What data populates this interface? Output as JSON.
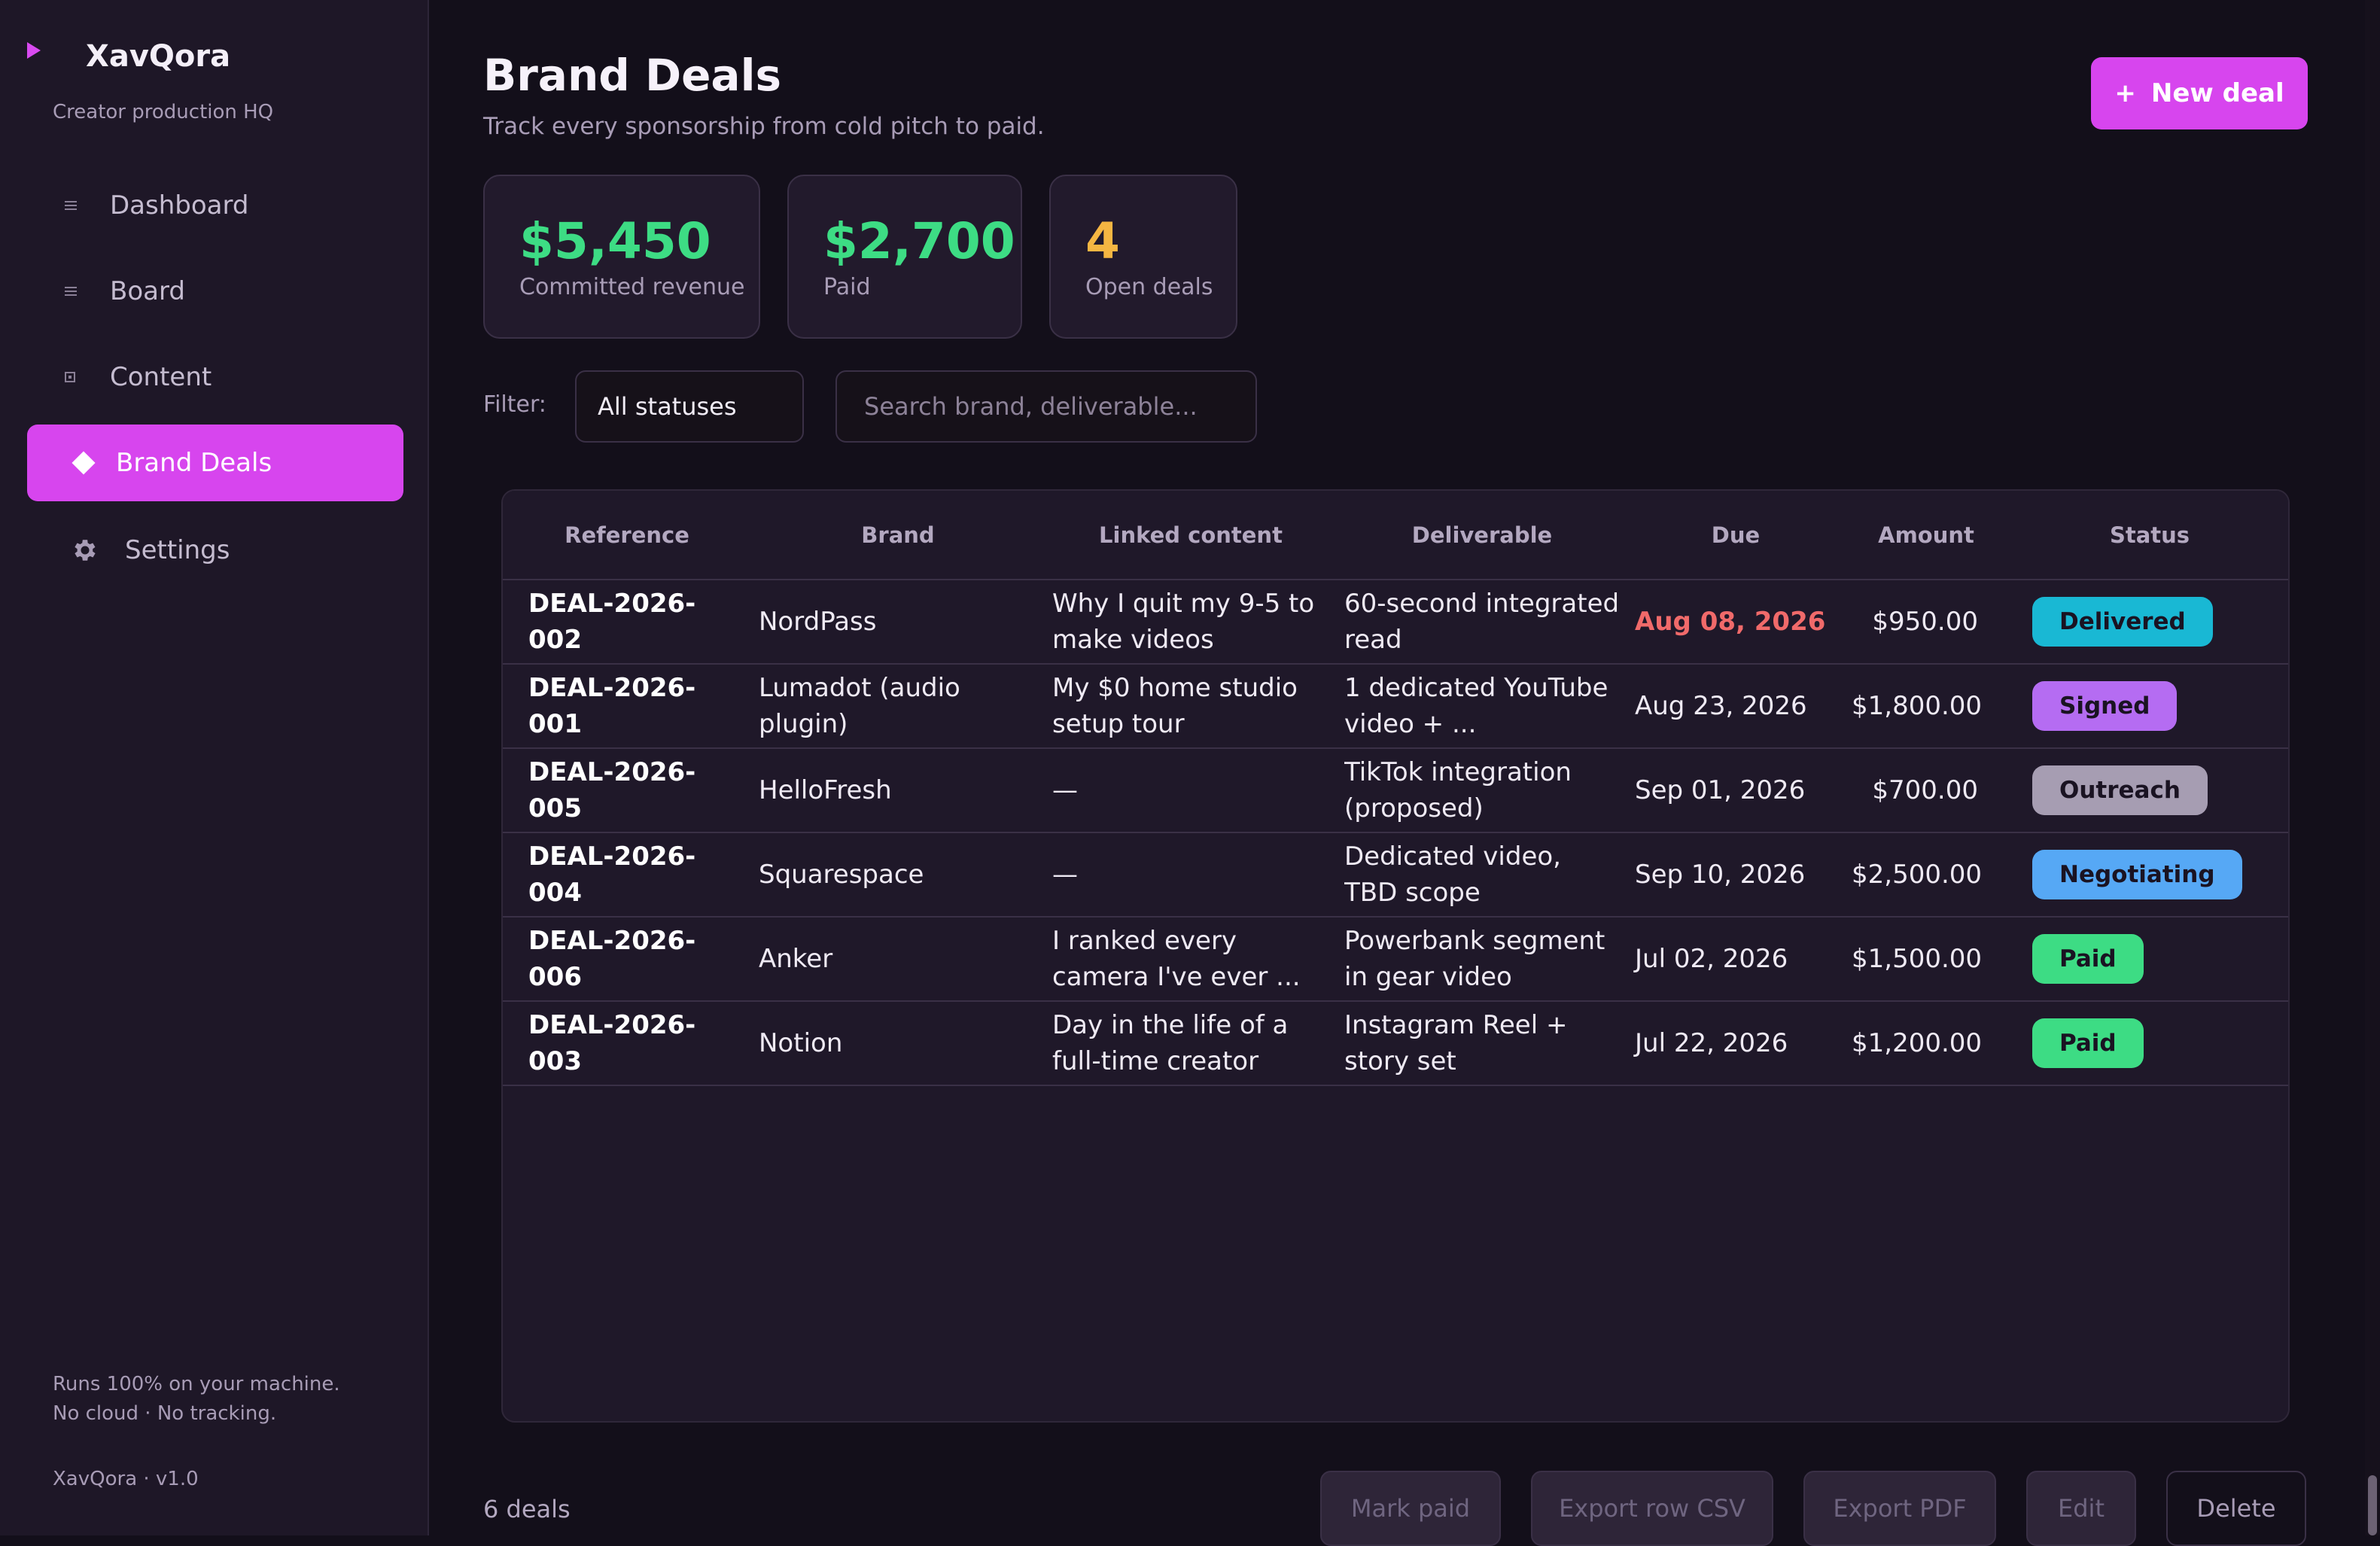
{
  "app": {
    "name": "XavQora",
    "tagline": "Creator production HQ",
    "footer_line1": "Runs 100% on your machine.",
    "footer_line2": "No cloud · No tracking.",
    "version": "XavQora · v1.0"
  },
  "sidebar": {
    "items": [
      {
        "label": "Dashboard",
        "icon": "list-icon"
      },
      {
        "label": "Board",
        "icon": "list-icon"
      },
      {
        "label": "Content",
        "icon": "square-icon"
      },
      {
        "label": "Brand Deals",
        "icon": "diamond-icon",
        "active": true
      },
      {
        "label": "Settings",
        "icon": "gear-icon"
      }
    ]
  },
  "header": {
    "title": "Brand Deals",
    "subtitle": "Track every sponsorship from cold pitch to paid.",
    "new_deal_icon": "+",
    "new_deal_label": "New deal"
  },
  "stats": [
    {
      "value": "$5,450",
      "label": "Committed revenue",
      "color": "#3ddc84"
    },
    {
      "value": "$2,700",
      "label": "Paid",
      "color": "#3ddc84"
    },
    {
      "value": "4",
      "label": "Open deals",
      "color": "#f5b642"
    }
  ],
  "filter": {
    "label": "Filter:",
    "selected": "All statuses",
    "search_placeholder": "Search brand, deliverable..."
  },
  "table": {
    "columns": [
      "Reference",
      "Brand",
      "Linked content",
      "Deliverable",
      "Due",
      "Amount",
      "Status"
    ],
    "rows": [
      {
        "reference": "DEAL-2026-002",
        "brand": "NordPass",
        "linked": "Why I quit my 9-5 to make videos",
        "deliverable": "60-second integrated read",
        "due": "Aug 08, 2026",
        "overdue": true,
        "amount": "$950.00",
        "status": "Delivered",
        "status_color": "#19b8d4"
      },
      {
        "reference": "DEAL-2026-001",
        "brand": "Lumadot (audio plugin)",
        "linked": "My $0 home studio setup tour",
        "deliverable": "1 dedicated YouTube video + ...",
        "due": "Aug 23, 2026",
        "overdue": false,
        "amount": "$1,800.00",
        "status": "Signed",
        "status_color": "#b56cf2"
      },
      {
        "reference": "DEAL-2026-005",
        "brand": "HelloFresh",
        "linked": "—",
        "deliverable": "TikTok integration (proposed)",
        "due": "Sep 01, 2026",
        "overdue": false,
        "amount": "$700.00",
        "status": "Outreach",
        "status_color": "#a69db2"
      },
      {
        "reference": "DEAL-2026-004",
        "brand": "Squarespace",
        "linked": "—",
        "deliverable": "Dedicated video, TBD scope",
        "due": "Sep 10, 2026",
        "overdue": false,
        "amount": "$2,500.00",
        "status": "Negotiating",
        "status_color": "#56a8f5"
      },
      {
        "reference": "DEAL-2026-006",
        "brand": "Anker",
        "linked": "I ranked every camera I've ever ...",
        "deliverable": "Powerbank segment in gear video",
        "due": "Jul 02, 2026",
        "overdue": false,
        "amount": "$1,500.00",
        "status": "Paid",
        "status_color": "#3ddc84"
      },
      {
        "reference": "DEAL-2026-003",
        "brand": "Notion",
        "linked": "Day in the life of a full-time creator",
        "deliverable": "Instagram Reel + story set",
        "due": "Jul 22, 2026",
        "overdue": false,
        "amount": "$1,200.00",
        "status": "Paid",
        "status_color": "#3ddc84"
      }
    ]
  },
  "footer": {
    "count": "6 deals",
    "buttons": {
      "mark_paid": "Mark paid",
      "export_csv": "Export row CSV",
      "export_pdf": "Export PDF",
      "edit": "Edit",
      "delete": "Delete"
    }
  },
  "colors": {
    "accent": "#d745ee",
    "overdue": "#f06a6a"
  }
}
